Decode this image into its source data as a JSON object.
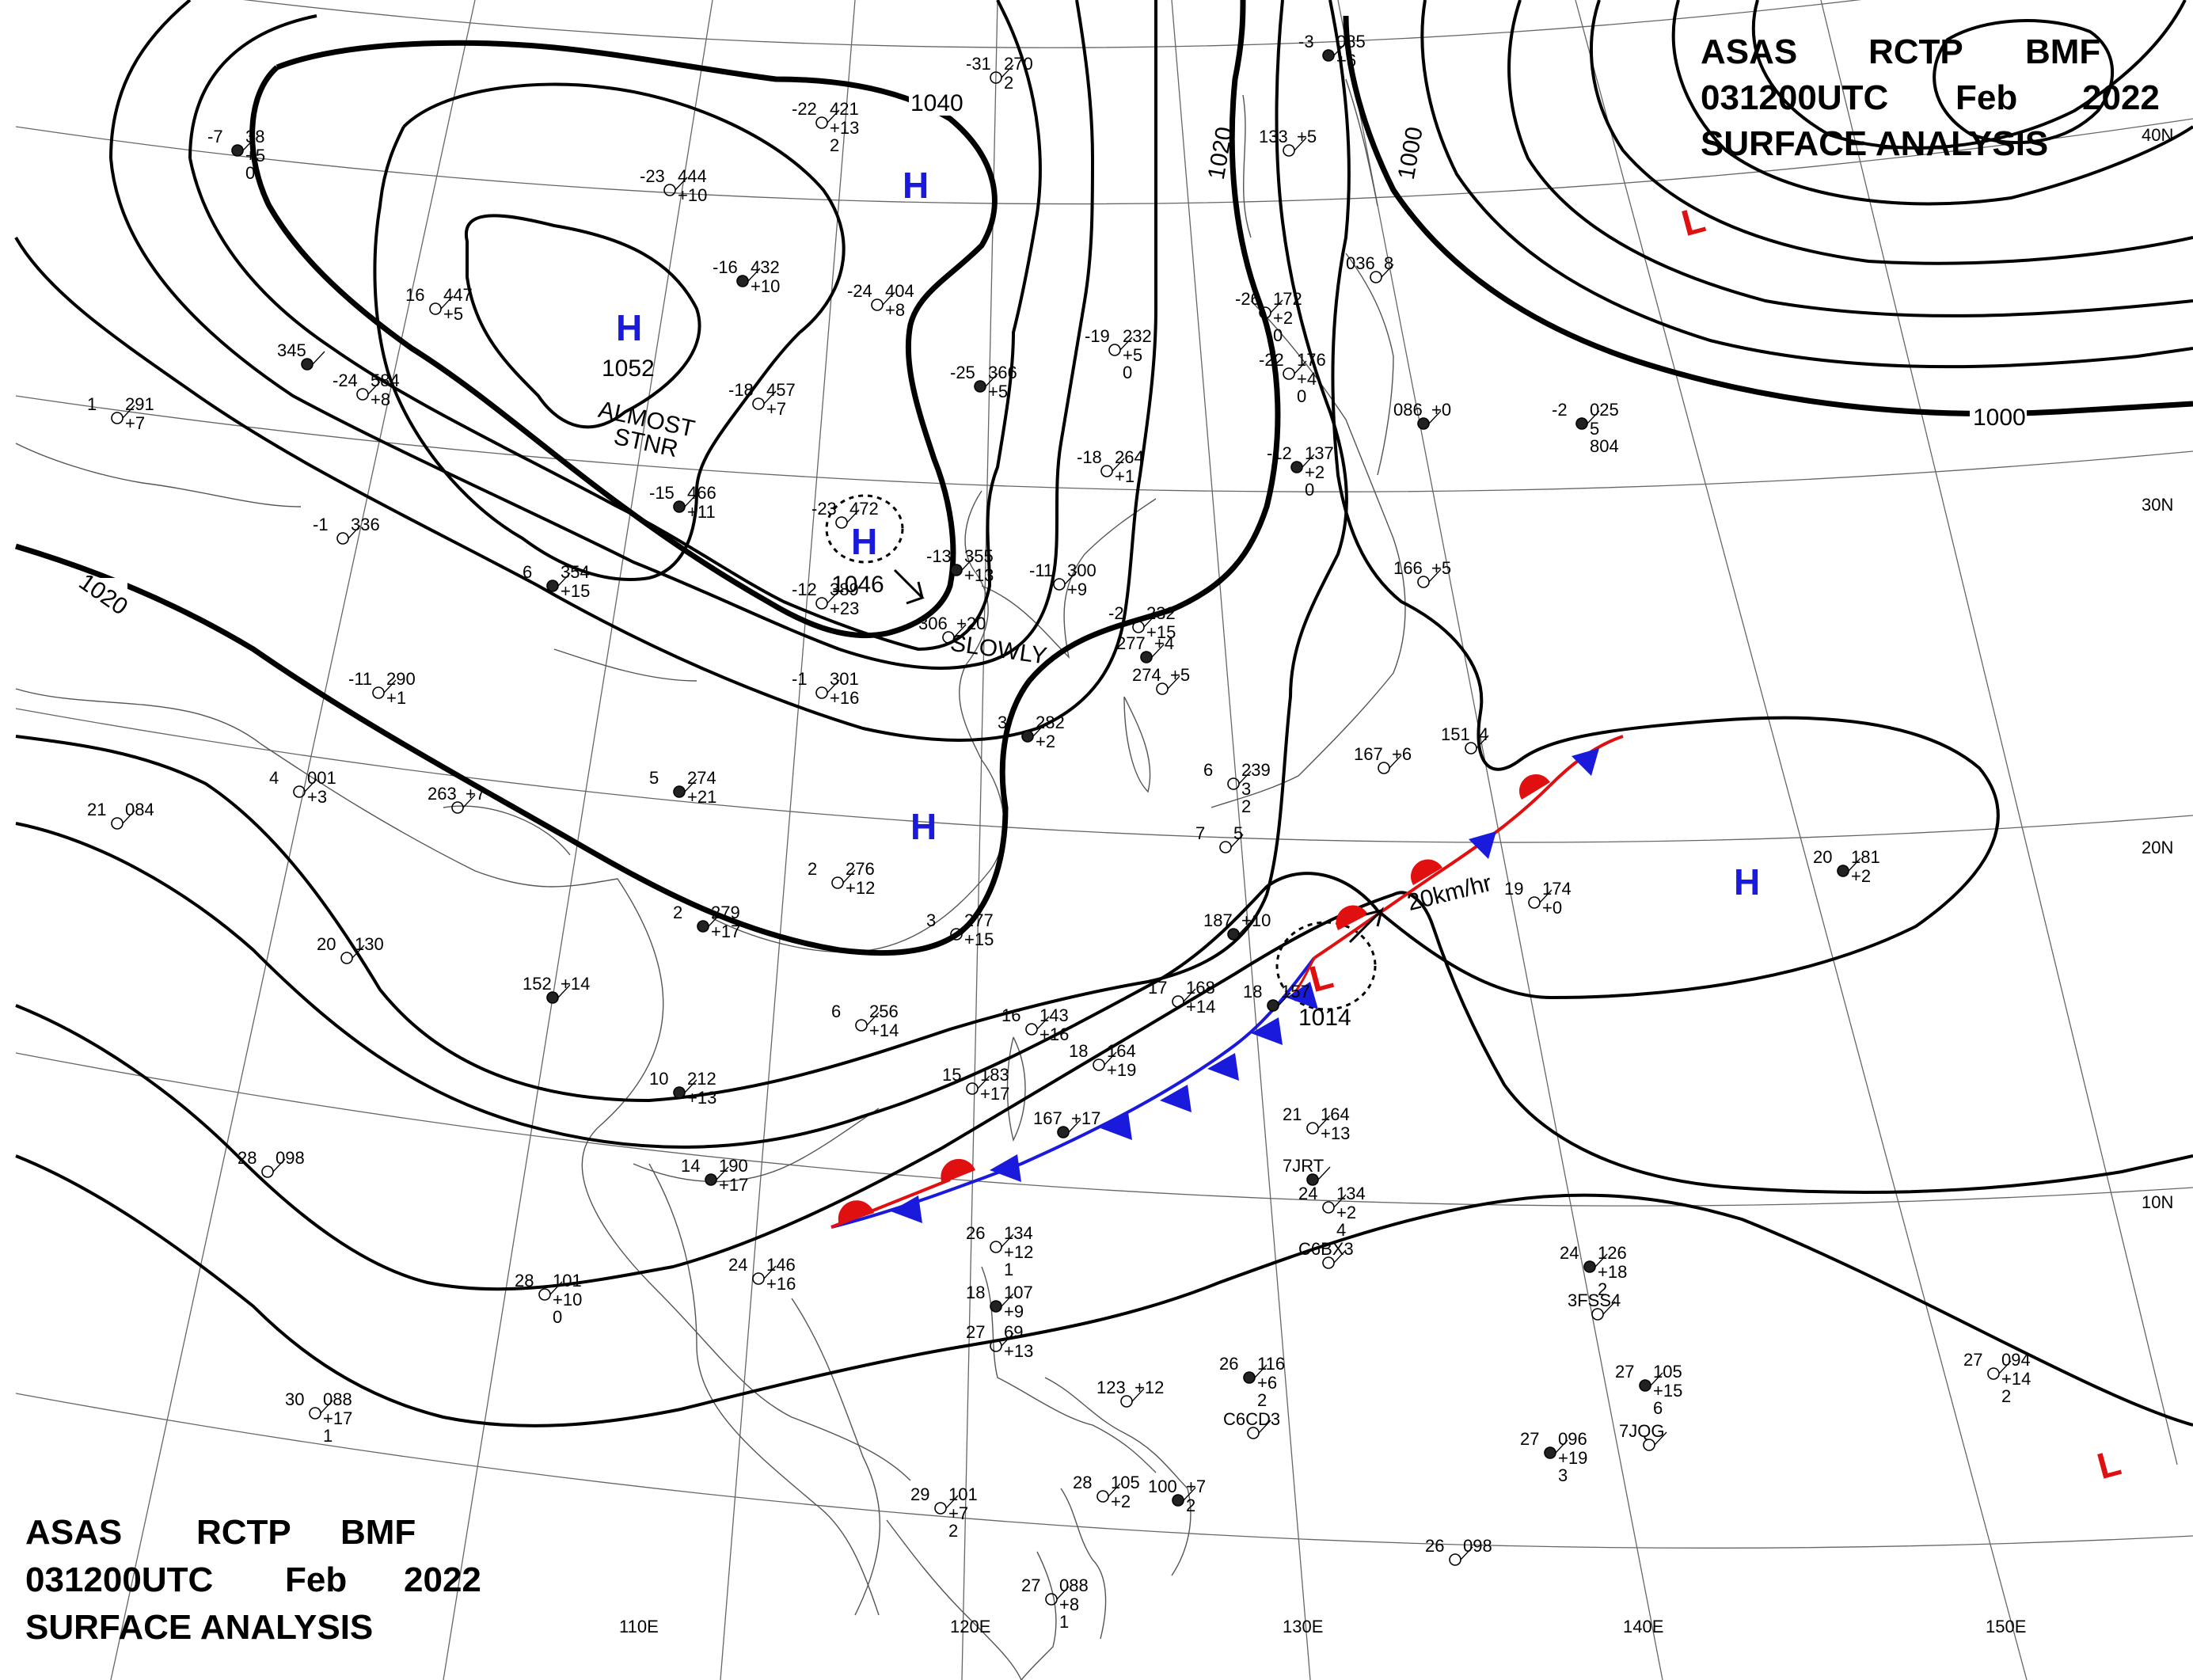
{
  "header": {
    "line1": [
      "ASAS",
      "RCTP",
      "BMF"
    ],
    "line2": [
      "031200UTC",
      "Feb",
      "2022"
    ],
    "line3": "SURFACE ANALYSIS"
  },
  "systems": {
    "high_main": {
      "symbol": "H",
      "pressure": "1052",
      "motion": [
        "ALMOST",
        "STNR"
      ]
    },
    "high_center": {
      "symbol": "H",
      "pressure": "1046",
      "motion": "SLOWLY"
    },
    "high_north": {
      "symbol": "H"
    },
    "high_china": {
      "symbol": "H"
    },
    "high_pacific": {
      "symbol": "H"
    },
    "low_front": {
      "symbol": "L",
      "pressure": "1014",
      "motion": "20km/hr"
    },
    "low_ne": {
      "symbol": "L"
    },
    "low_se": {
      "symbol": "L"
    }
  },
  "isobar_labels": {
    "l1040": "1040",
    "l1020_left": "1020",
    "l1020_top": "1020",
    "l1000_top": "1000",
    "l1000_right": "1000"
  },
  "longitudes": [
    "110E",
    "120E",
    "130E",
    "140E",
    "150E"
  ],
  "latitudes": [
    "40N",
    "30N",
    "20N",
    "10N"
  ],
  "colors": {
    "high": "#1a1adc",
    "low": "#e01010",
    "cold_front": "#1a1adc",
    "warm_front": "#e01010"
  },
  "stations": [
    {
      "id": "st1",
      "text": [
        "-7",
        "38",
        "+5",
        "0"
      ]
    },
    {
      "id": "st2",
      "text": [
        "-22",
        "421",
        "+13",
        "2"
      ]
    },
    {
      "id": "st3",
      "text": [
        "-23",
        "444",
        "+10"
      ]
    },
    {
      "id": "st4",
      "text": [
        "-16",
        "432",
        "+10"
      ]
    },
    {
      "id": "st5",
      "text": [
        "-24",
        "404",
        "+8"
      ]
    },
    {
      "id": "st6",
      "text": [
        "16",
        "447",
        "+5"
      ]
    },
    {
      "id": "st7",
      "text": [
        "345"
      ]
    },
    {
      "id": "st8",
      "text": [
        "-24",
        "584",
        "+8"
      ]
    },
    {
      "id": "st9",
      "text": [
        "-18",
        "457",
        "+7"
      ]
    },
    {
      "id": "st10",
      "text": [
        "-15",
        "466",
        "+11"
      ]
    },
    {
      "id": "st11",
      "text": [
        "-23",
        "472"
      ]
    },
    {
      "id": "st12",
      "text": [
        "-12",
        "389",
        "+23"
      ]
    },
    {
      "id": "st13",
      "text": [
        "-13",
        "355",
        "+13"
      ]
    },
    {
      "id": "st14",
      "text": [
        "-11",
        "300",
        "+9"
      ]
    },
    {
      "id": "st15",
      "text": [
        "-19",
        "232",
        "+5",
        "0"
      ]
    },
    {
      "id": "st16",
      "text": [
        "-25",
        "366",
        "+5"
      ]
    },
    {
      "id": "st17",
      "text": [
        "-26",
        "172",
        "+2",
        "0"
      ]
    },
    {
      "id": "st18",
      "text": [
        "-22",
        "176",
        "+4",
        "0"
      ]
    },
    {
      "id": "st19",
      "text": [
        "-12",
        "137",
        "+2",
        "0"
      ]
    },
    {
      "id": "st20",
      "text": [
        "-18",
        "264",
        "+1"
      ]
    },
    {
      "id": "st21",
      "text": [
        "-31",
        "270",
        "2"
      ]
    },
    {
      "id": "st22",
      "text": [
        "-3",
        "085",
        "+6"
      ]
    },
    {
      "id": "st23",
      "text": [
        "133",
        "+5"
      ]
    },
    {
      "id": "st24",
      "text": [
        "036",
        "8"
      ]
    },
    {
      "id": "st25",
      "text": [
        "086",
        "+0"
      ]
    },
    {
      "id": "st26",
      "text": [
        "1",
        "291",
        "+7"
      ]
    },
    {
      "id": "st27",
      "text": [
        "-1",
        "336"
      ]
    },
    {
      "id": "st28",
      "text": [
        "6",
        "354",
        "+15"
      ]
    },
    {
      "id": "st29",
      "text": [
        "-2",
        "232",
        "+15"
      ]
    },
    {
      "id": "st30",
      "text": [
        "306",
        "+20"
      ]
    },
    {
      "id": "st31",
      "text": [
        "277",
        "+4"
      ]
    },
    {
      "id": "st32",
      "text": [
        "274",
        "+5"
      ]
    },
    {
      "id": "st33",
      "text": [
        "166",
        "+5"
      ]
    },
    {
      "id": "st34",
      "text": [
        "-2",
        "025",
        "5",
        "804"
      ]
    },
    {
      "id": "st35",
      "text": [
        "-11",
        "290",
        "+1"
      ]
    },
    {
      "id": "st36",
      "text": [
        "-1",
        "301",
        "+16"
      ]
    },
    {
      "id": "st37",
      "text": [
        "3",
        "282",
        "+2"
      ]
    },
    {
      "id": "st38",
      "text": [
        "4",
        "001",
        "+3"
      ]
    },
    {
      "id": "st39",
      "text": [
        "263",
        "+7"
      ]
    },
    {
      "id": "st40",
      "text": [
        "5",
        "274",
        "+21"
      ]
    },
    {
      "id": "st41",
      "text": [
        "21",
        "084"
      ]
    },
    {
      "id": "st42",
      "text": [
        "2",
        "276",
        "+12"
      ]
    },
    {
      "id": "st43",
      "text": [
        "2",
        "279",
        "+17"
      ]
    },
    {
      "id": "st44",
      "text": [
        "6",
        "239",
        "3",
        "2"
      ]
    },
    {
      "id": "st45",
      "text": [
        "7",
        "5"
      ]
    },
    {
      "id": "st46",
      "text": [
        "187",
        "+10"
      ]
    },
    {
      "id": "st47",
      "text": [
        "167",
        "+6"
      ]
    },
    {
      "id": "st48",
      "text": [
        "151",
        "4"
      ]
    },
    {
      "id": "st49",
      "text": [
        "20",
        "181",
        "+2"
      ]
    },
    {
      "id": "st50",
      "text": [
        "19",
        "174",
        "+0"
      ]
    },
    {
      "id": "st51",
      "text": [
        "20",
        "130"
      ]
    },
    {
      "id": "st52",
      "text": [
        "152",
        "+14"
      ]
    },
    {
      "id": "st53",
      "text": [
        "6",
        "256",
        "+14"
      ]
    },
    {
      "id": "st54",
      "text": [
        "3",
        "277",
        "+15"
      ]
    },
    {
      "id": "st55",
      "text": [
        "10",
        "212",
        "+13"
      ]
    },
    {
      "id": "st56",
      "text": [
        "16",
        "143",
        "+16"
      ]
    },
    {
      "id": "st57",
      "text": [
        "17",
        "168",
        "+14"
      ]
    },
    {
      "id": "st58",
      "text": [
        "18",
        "157"
      ]
    },
    {
      "id": "st59",
      "text": [
        "18",
        "164",
        "+19"
      ]
    },
    {
      "id": "st60",
      "text": [
        "15",
        "183",
        "+17"
      ]
    },
    {
      "id": "st61",
      "text": [
        "167",
        "+17"
      ]
    },
    {
      "id": "st62",
      "text": [
        "21",
        "164",
        "+13"
      ]
    },
    {
      "id": "st63",
      "text": [
        "28",
        "098"
      ]
    },
    {
      "id": "st64",
      "text": [
        "14",
        "190",
        "+17"
      ]
    },
    {
      "id": "st65",
      "text": [
        "24",
        "146",
        "+16"
      ]
    },
    {
      "id": "st66",
      "text": [
        "26",
        "134",
        "+12",
        "1"
      ]
    },
    {
      "id": "st67",
      "text": [
        "7JRT"
      ]
    },
    {
      "id": "st68",
      "text": [
        "24",
        "134",
        "+2",
        "4"
      ]
    },
    {
      "id": "st69",
      "text": [
        "C6BX3"
      ]
    },
    {
      "id": "st70",
      "text": [
        "24",
        "126",
        "+18",
        "2"
      ]
    },
    {
      "id": "st71",
      "text": [
        "3FSS4"
      ]
    },
    {
      "id": "st72",
      "text": [
        "28",
        "101",
        "+10",
        "0"
      ]
    },
    {
      "id": "st73",
      "text": [
        "18",
        "107",
        "+9"
      ]
    },
    {
      "id": "st74",
      "text": [
        "27",
        "69",
        "+13"
      ]
    },
    {
      "id": "st75",
      "text": [
        "30",
        "088",
        "+17",
        "1"
      ]
    },
    {
      "id": "st76",
      "text": [
        "26",
        "116",
        "+6",
        "2"
      ]
    },
    {
      "id": "st77",
      "text": [
        "C6CD3"
      ]
    },
    {
      "id": "st78",
      "text": [
        "123",
        "+12"
      ]
    },
    {
      "id": "st79",
      "text": [
        "27",
        "105",
        "+15",
        "6"
      ]
    },
    {
      "id": "st80",
      "text": [
        "7JQG"
      ]
    },
    {
      "id": "st81",
      "text": [
        "27",
        "094",
        "+14",
        "2"
      ]
    },
    {
      "id": "st82",
      "text": [
        "27",
        "096",
        "+19",
        "3"
      ]
    },
    {
      "id": "st83",
      "text": [
        "29",
        "101",
        "+7",
        "2"
      ]
    },
    {
      "id": "st84",
      "text": [
        "28",
        "105",
        "+2"
      ]
    },
    {
      "id": "st85",
      "text": [
        "100",
        "+7",
        "2"
      ]
    },
    {
      "id": "st86",
      "text": [
        "26",
        "098"
      ]
    },
    {
      "id": "st87",
      "text": [
        "27",
        "088",
        "+8",
        "1"
      ]
    }
  ]
}
